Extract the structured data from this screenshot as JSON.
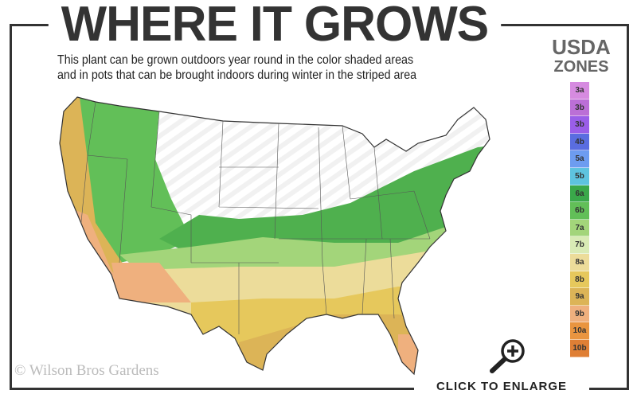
{
  "title": "WHERE IT GROWS",
  "subtitle_line1": "This plant can be grown outdoors year round in the color shaded areas",
  "subtitle_line2": "and in pots that can be brought indoors during winter in the striped area",
  "legend": {
    "title_line1": "USDA",
    "title_line2": "ZONES",
    "zones": [
      {
        "label": "3a",
        "color": "#d68be0"
      },
      {
        "label": "3b",
        "color": "#bb6fd6"
      },
      {
        "label": "3b",
        "color": "#9a5ee8"
      },
      {
        "label": "4b",
        "color": "#5a6de0"
      },
      {
        "label": "5a",
        "color": "#6d9cf0"
      },
      {
        "label": "5b",
        "color": "#5ec3df"
      },
      {
        "label": "6a",
        "color": "#3aa84a"
      },
      {
        "label": "6b",
        "color": "#62bf58"
      },
      {
        "label": "7a",
        "color": "#a3d57a"
      },
      {
        "label": "7b",
        "color": "#d9ebb5"
      },
      {
        "label": "8a",
        "color": "#ecdc9a"
      },
      {
        "label": "8b",
        "color": "#e6c85c"
      },
      {
        "label": "9a",
        "color": "#dcb457"
      },
      {
        "label": "9b",
        "color": "#efb07e"
      },
      {
        "label": "10a",
        "color": "#e99540"
      },
      {
        "label": "10b",
        "color": "#df7f35"
      }
    ]
  },
  "copyright": "© Wilson Bros Gardens",
  "enlarge_label": "CLICK TO ENLARGE",
  "icons": {
    "enlarge": "magnifier-plus-icon"
  }
}
